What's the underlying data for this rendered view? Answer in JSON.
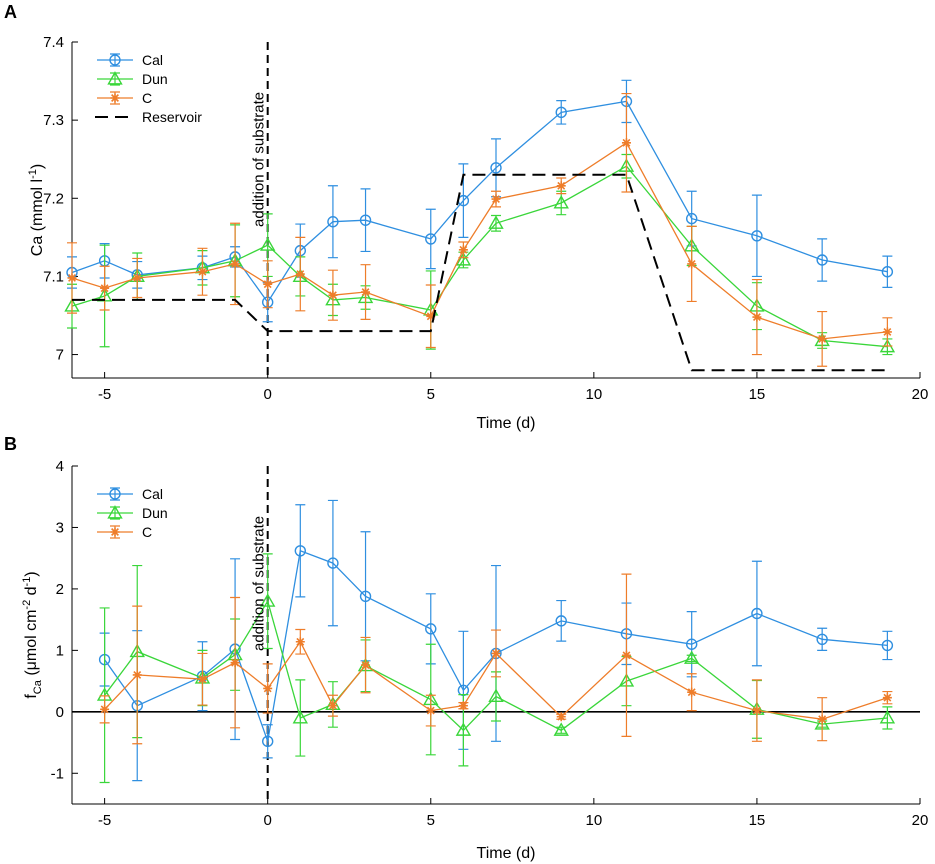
{
  "chart_data": [
    {
      "type": "line",
      "panel_label": "A",
      "xlabel": "Time (d)",
      "ylabel_main": "Ca (mmol l",
      "ylabel_sup": "-1",
      "ylabel_close": ")",
      "xlim": [
        -6,
        20
      ],
      "ylim": [
        6.97,
        7.4
      ],
      "xticks": [
        -5,
        0,
        5,
        10,
        15,
        20
      ],
      "yticks": [
        7,
        7.1,
        7.2,
        7.3,
        7.4
      ],
      "ytick_labels": [
        "7",
        "7.1",
        "7.2",
        "7.3",
        "7.4"
      ],
      "annotation": "addition of substrate",
      "annotation_x": 0,
      "legend_position": "top-left",
      "series": [
        {
          "name": "Cal",
          "color": "#2f8fe0",
          "marker": "circle",
          "x": [
            -6,
            -5,
            -4,
            -2,
            -1,
            0,
            1,
            2,
            3,
            5,
            6,
            7,
            9,
            11,
            13,
            15,
            17,
            19
          ],
          "y": [
            7.105,
            7.12,
            7.102,
            7.111,
            7.125,
            7.067,
            7.133,
            7.17,
            7.172,
            7.148,
            7.197,
            7.239,
            7.31,
            7.324,
            7.174,
            7.152,
            7.121,
            7.106
          ],
          "err": [
            0.02,
            0.022,
            0.017,
            0.015,
            0.013,
            0.025,
            0.034,
            0.046,
            0.04,
            0.038,
            0.047,
            0.037,
            0.015,
            0.027,
            0.035,
            0.052,
            0.027,
            0.02
          ]
        },
        {
          "name": "Dun",
          "color": "#3ad63a",
          "marker": "triangle",
          "x": [
            -6,
            -5,
            -4,
            -2,
            -1,
            0,
            1,
            2,
            3,
            5,
            6,
            7,
            9,
            11,
            13,
            15,
            17,
            19
          ],
          "y": [
            7.062,
            7.075,
            7.1,
            7.111,
            7.12,
            7.14,
            7.1,
            7.07,
            7.073,
            7.057,
            7.121,
            7.168,
            7.194,
            7.241,
            7.139,
            7.062,
            7.018,
            7.01
          ],
          "err": [
            0.028,
            0.065,
            0.03,
            0.022,
            0.046,
            0.04,
            0.025,
            0.02,
            0.015,
            0.05,
            0.01,
            0.01,
            0.015,
            0.015,
            0.025,
            0.03,
            0.01,
            0.01
          ]
        },
        {
          "name": "C",
          "color": "#ee7d2a",
          "marker": "star",
          "x": [
            -6,
            -5,
            -4,
            -2,
            -1,
            0,
            1,
            2,
            3,
            5,
            6,
            7,
            9,
            11,
            13,
            15,
            17,
            19
          ],
          "y": [
            7.098,
            7.085,
            7.098,
            7.106,
            7.116,
            7.09,
            7.103,
            7.076,
            7.08,
            7.049,
            7.134,
            7.199,
            7.216,
            7.271,
            7.116,
            7.048,
            7.02,
            7.029
          ],
          "err": [
            0.045,
            0.028,
            0.025,
            0.03,
            0.052,
            0.03,
            0.047,
            0.032,
            0.035,
            0.04,
            0.01,
            0.01,
            0.01,
            0.063,
            0.048,
            0.048,
            0.035,
            0.018
          ]
        },
        {
          "name": "Reservoir",
          "color": "#000000",
          "marker": "none",
          "dashed": true,
          "x": [
            -6,
            -1,
            0,
            5,
            6,
            11,
            13,
            19
          ],
          "y": [
            7.07,
            7.07,
            7.03,
            7.03,
            7.23,
            7.23,
            6.98,
            6.98
          ]
        }
      ]
    },
    {
      "type": "line",
      "panel_label": "B",
      "xlabel": "Time (d)",
      "ylabel_main": "f",
      "ylabel_sub": "Ca",
      "ylabel_unit": " (μmol cm",
      "ylabel_sup1": "-2",
      "ylabel_mid": " d",
      "ylabel_sup2": "-1",
      "ylabel_close": ")",
      "xlim": [
        -6,
        20
      ],
      "ylim": [
        -1.5,
        4
      ],
      "xticks": [
        -5,
        0,
        5,
        10,
        15,
        20
      ],
      "yticks": [
        -1,
        0,
        1,
        2,
        3,
        4
      ],
      "ytick_labels": [
        "-1",
        "0",
        "1",
        "2",
        "3",
        "4"
      ],
      "annotation": "addition of substrate",
      "annotation_x": 0,
      "zero_line": true,
      "legend_position": "top-left",
      "series": [
        {
          "name": "Cal",
          "color": "#2f8fe0",
          "marker": "circle",
          "x": [
            -5,
            -4,
            -2,
            -1,
            0,
            1,
            2,
            3,
            5,
            6,
            7,
            9,
            11,
            13,
            15,
            17,
            19
          ],
          "y": [
            0.85,
            0.1,
            0.58,
            1.02,
            -0.48,
            2.62,
            2.42,
            1.88,
            1.35,
            0.35,
            0.95,
            1.48,
            1.27,
            1.1,
            1.6,
            1.18,
            1.08
          ],
          "err": [
            0.43,
            1.22,
            0.56,
            1.47,
            0.27,
            0.75,
            1.02,
            1.05,
            0.57,
            0.96,
            1.43,
            0.33,
            0.5,
            0.53,
            0.85,
            0.18,
            0.23
          ]
        },
        {
          "name": "Dun",
          "color": "#3ad63a",
          "marker": "triangle",
          "x": [
            -5,
            -4,
            -2,
            -1,
            0,
            1,
            2,
            3,
            5,
            6,
            7,
            9,
            11,
            13,
            15,
            17,
            19
          ],
          "y": [
            0.27,
            0.98,
            0.55,
            0.93,
            1.8,
            -0.1,
            0.12,
            0.75,
            0.2,
            -0.3,
            0.25,
            -0.3,
            0.5,
            0.87,
            0.04,
            -0.2,
            -0.1
          ],
          "err": [
            1.42,
            1.4,
            0.45,
            0.58,
            0.77,
            0.62,
            0.37,
            0.42,
            0.9,
            0.58,
            0.4,
            0.05,
            0.4,
            0.05,
            0.47,
            0.05,
            0.18
          ]
        },
        {
          "name": "C",
          "color": "#ee7d2a",
          "marker": "star",
          "x": [
            -5,
            -4,
            -2,
            -1,
            0,
            1,
            2,
            3,
            5,
            6,
            7,
            9,
            11,
            13,
            15,
            17,
            19
          ],
          "y": [
            0.04,
            0.6,
            0.53,
            0.8,
            0.38,
            1.14,
            0.1,
            0.76,
            0.02,
            0.1,
            0.95,
            -0.08,
            0.92,
            0.32,
            0.02,
            -0.12,
            0.23
          ],
          "err": [
            0.22,
            1.12,
            0.42,
            1.06,
            0.4,
            0.2,
            0.17,
            0.45,
            0.25,
            0.05,
            0.38,
            0.04,
            1.32,
            0.3,
            0.5,
            0.35,
            0.1
          ]
        }
      ]
    }
  ]
}
